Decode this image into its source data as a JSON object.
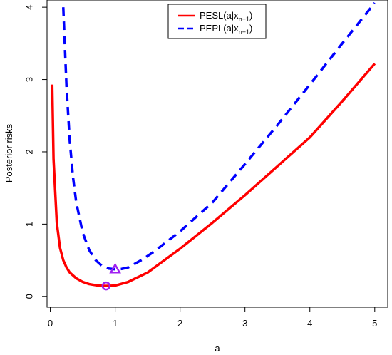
{
  "chart_data": {
    "type": "line",
    "title": "",
    "xlabel": "a",
    "ylabel": "Posterior risks",
    "xlim": [
      -0.05,
      5.2
    ],
    "ylim": [
      -0.15,
      4.1
    ],
    "x_ticks": [
      0,
      1,
      2,
      3,
      4,
      5
    ],
    "y_ticks": [
      0,
      1,
      2,
      3,
      4
    ],
    "grid": false,
    "legend_placement": "top-center",
    "series": [
      {
        "name_main": "PESL(a|x",
        "name_sub": "n+1",
        "name_close": ")",
        "color": "#ff0000",
        "line_style": "solid",
        "x": [
          0.03,
          0.05,
          0.1,
          0.15,
          0.2,
          0.25,
          0.3,
          0.4,
          0.5,
          0.6,
          0.7,
          0.8,
          0.86,
          1.0,
          1.2,
          1.5,
          2.0,
          2.5,
          3.0,
          3.5,
          4.0,
          4.5,
          5.0
        ],
        "y": [
          2.93,
          1.9,
          1.02,
          0.67,
          0.5,
          0.4,
          0.33,
          0.25,
          0.2,
          0.17,
          0.155,
          0.147,
          0.145,
          0.15,
          0.2,
          0.33,
          0.66,
          1.02,
          1.4,
          1.8,
          2.2,
          2.7,
          3.22
        ],
        "marker": {
          "shape": "circle",
          "x": 0.86,
          "y": 0.145,
          "color": "#a020f0"
        }
      },
      {
        "name_main": "PEPL(a|x",
        "name_sub": "n+1",
        "name_close": ")",
        "color": "#0000ff",
        "line_style": "dashed",
        "x": [
          0.2,
          0.25,
          0.3,
          0.35,
          0.4,
          0.5,
          0.6,
          0.7,
          0.8,
          0.9,
          1.0,
          1.1,
          1.2,
          1.4,
          1.6,
          2.0,
          2.5,
          3.0,
          3.5,
          4.0,
          4.5,
          5.0
        ],
        "y": [
          4.0,
          2.9,
          2.15,
          1.65,
          1.3,
          0.88,
          0.64,
          0.5,
          0.42,
          0.385,
          0.375,
          0.38,
          0.4,
          0.5,
          0.62,
          0.9,
          1.3,
          1.83,
          2.37,
          2.93,
          3.5,
          4.06
        ],
        "marker": {
          "shape": "triangle",
          "x": 1.0,
          "y": 0.375,
          "color": "#a020f0"
        }
      }
    ]
  }
}
